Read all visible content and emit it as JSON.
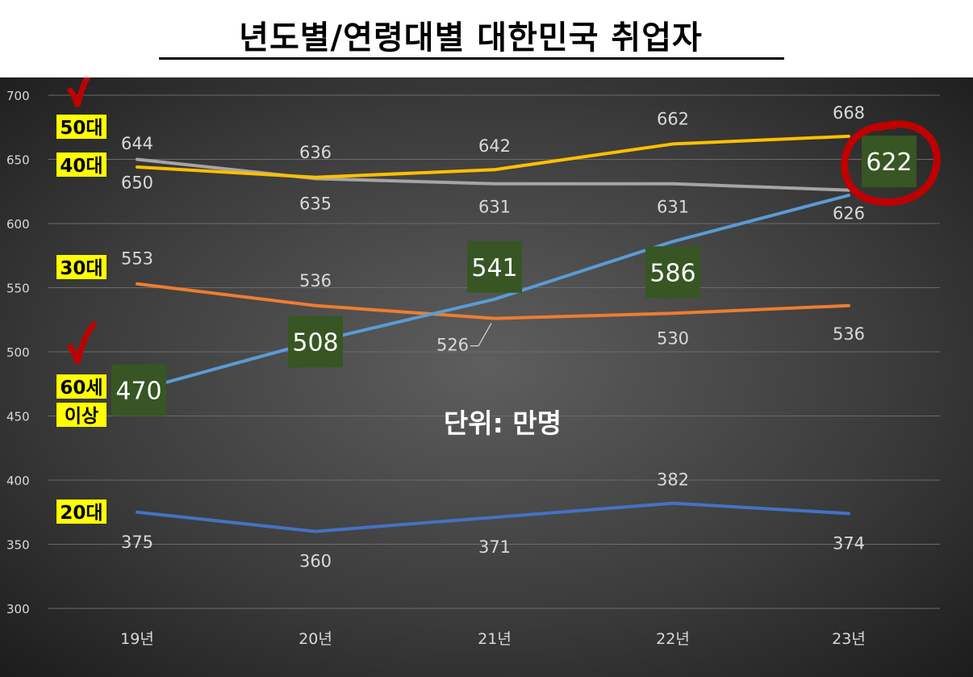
{
  "title": "년도별/연령대별 대한민국 취업자",
  "unit_note": "단위: 만명",
  "chart_data": {
    "type": "line",
    "title": "년도별/연령대별 대한민국 취업자",
    "categories": [
      "19년",
      "20년",
      "21년",
      "22년",
      "23년"
    ],
    "ylim": [
      300,
      700
    ],
    "yticks": [
      300,
      350,
      400,
      450,
      500,
      550,
      600,
      650,
      700
    ],
    "grid": true,
    "legend": "left labels",
    "series": [
      {
        "name": "50대",
        "color": "#a5a5a5",
        "values": [
          650,
          635,
          631,
          631,
          626
        ]
      },
      {
        "name": "40대",
        "color": "#ffc000",
        "values": [
          644,
          636,
          642,
          662,
          668
        ]
      },
      {
        "name": "30대",
        "color": "#ed7d31",
        "values": [
          553,
          536,
          526,
          530,
          536
        ]
      },
      {
        "name": "60세 이상",
        "color": "#5b9bd5",
        "values": [
          470,
          508,
          541,
          586,
          622
        ]
      },
      {
        "name": "20대",
        "color": "#4472c4",
        "values": [
          375,
          360,
          371,
          382,
          374
        ]
      }
    ],
    "series_labels": [
      "50대",
      "40대",
      "30대",
      "60세",
      "이상",
      "20대"
    ],
    "colors": {
      "background_center": "#5a5a5a",
      "background_edge": "#1a1a1a",
      "label_highlight": "#ffff00",
      "value_box": "#375623",
      "checkmark": "#c00000"
    }
  }
}
